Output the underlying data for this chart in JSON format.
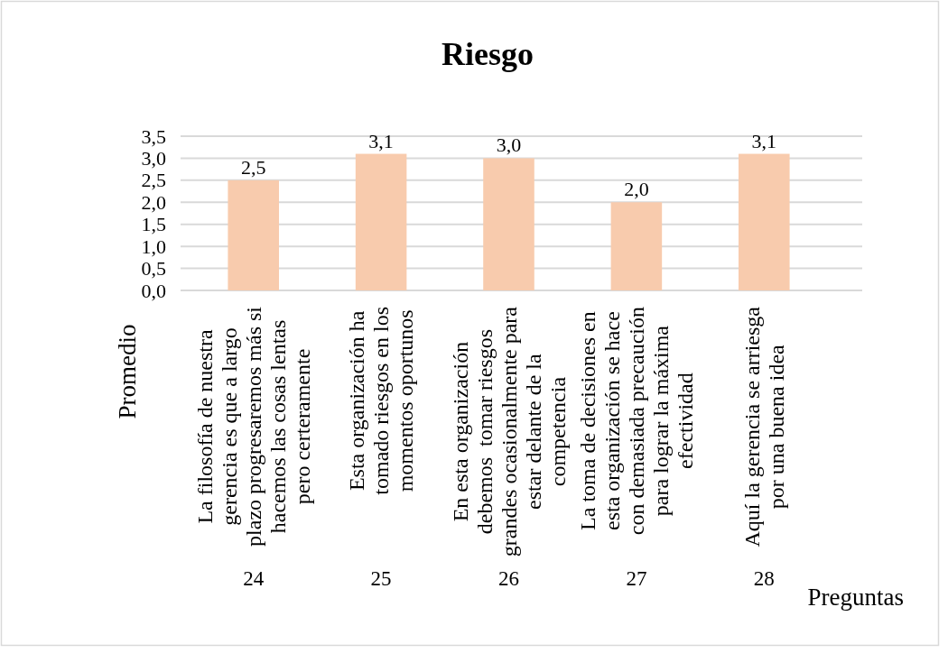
{
  "chart_data": {
    "type": "bar",
    "title": "Riesgo",
    "xlabel": "Preguntas",
    "ylabel": "Promedio",
    "categories": [
      "La filosofía de nuestra\ngerencia es que a largo\nplazo progresaremos más si\nhacemos las cosas lentas\npero certeramente",
      "Esta organización ha\ntomado riesgos en los\nmomentos oportunos",
      "En esta organización\ndebemos  tomar riesgos\ngrandes ocasionalmente para\nestar delante de la\ncompetencia",
      "La toma de decisiones en\nesta organización se hace\ncon demasiada precaución\npara lograr la máxima\nefectividad",
      "Aquí la gerencia se arriesga\npor una buena idea"
    ],
    "values": [
      2.5,
      3.1,
      3.0,
      2.0,
      3.1
    ],
    "value_labels": [
      "2,5",
      "3,1",
      "3,0",
      "2,0",
      "3,1"
    ],
    "color": "#f8cbad",
    "ylim": [
      0,
      3.5
    ],
    "yticks": [
      {
        "value": 0,
        "label": "0,0"
      },
      {
        "value": 0.5,
        "label": "0,5"
      },
      {
        "value": 1,
        "label": "1,0"
      },
      {
        "value": 1.5,
        "label": "1,5"
      },
      {
        "value": 2,
        "label": "2,0"
      },
      {
        "value": 2.5,
        "label": "2,5"
      },
      {
        "value": 3,
        "label": "3,0"
      },
      {
        "value": 3.5,
        "label": "3,5"
      }
    ],
    "grid": "y",
    "annotations": [
      "24",
      "25",
      "26",
      "27",
      "28"
    ]
  }
}
